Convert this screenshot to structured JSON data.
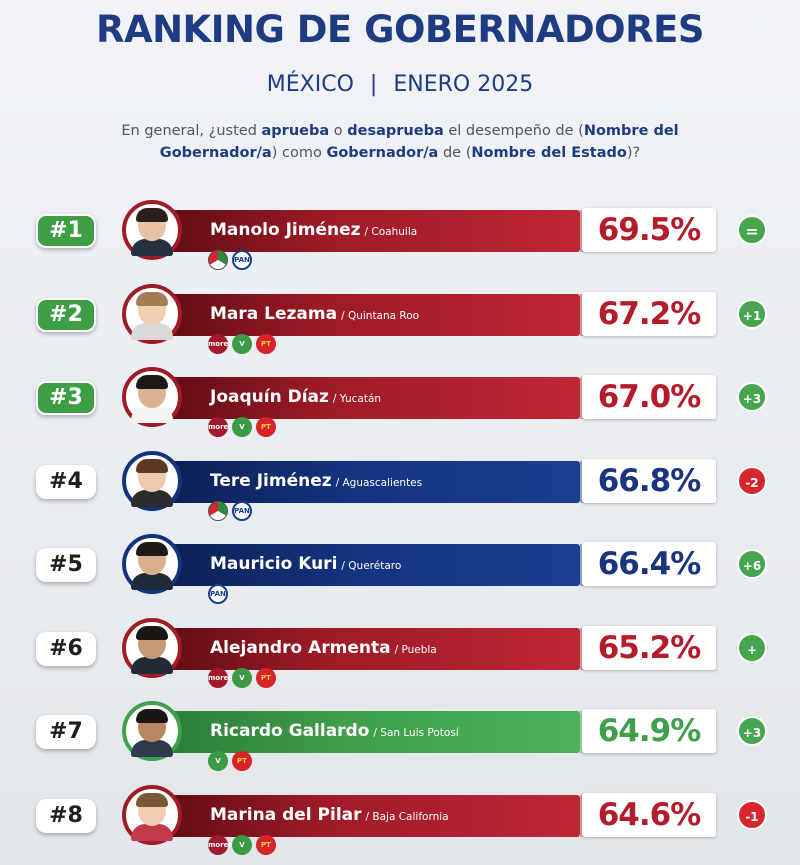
{
  "header": {
    "title": "RANKING DE GOBERNADORES",
    "country": "MÉXICO",
    "separator": "|",
    "date": "ENERO 2025",
    "question_parts": [
      "En general, ¿usted ",
      "aprueba",
      " o ",
      "desaprueba",
      " el desempeño de (",
      "Nombre del Gobernador/a",
      ") como ",
      "Gobernador/a",
      " de (",
      "Nombre del Estado",
      ")?"
    ]
  },
  "colors": {
    "morena_red": "#9e1b27",
    "pan_blue": "#14337f",
    "pvem_green": "#3f9f4b",
    "rank_top_green": "#3e9e46",
    "change_up": "#46a54f",
    "change_down": "#d8262f"
  },
  "rows": [
    {
      "rank": "#1",
      "name": "Manolo Jiménez",
      "state": "/ Coahuila",
      "pct": "69.5%",
      "value": 69.5,
      "change": "=",
      "trend": "eq",
      "color": "red",
      "top": true,
      "logos": [
        {
          "type": "pri",
          "label": ""
        },
        {
          "type": "pan",
          "label": "PAN"
        }
      ]
    },
    {
      "rank": "#2",
      "name": "Mara Lezama",
      "state": "/ Quintana Roo",
      "pct": "67.2%",
      "value": 67.2,
      "change": "+1",
      "trend": "up",
      "color": "red",
      "top": true,
      "logos": [
        {
          "type": "morena",
          "label": "morena"
        },
        {
          "type": "pvem",
          "label": "V"
        },
        {
          "type": "pt",
          "label": "PT"
        }
      ]
    },
    {
      "rank": "#3",
      "name": "Joaquín Díaz",
      "state": "/ Yucatán",
      "pct": "67.0%",
      "value": 67.0,
      "change": "+3",
      "trend": "up",
      "color": "red",
      "top": true,
      "logos": [
        {
          "type": "morena",
          "label": "morena"
        },
        {
          "type": "pvem",
          "label": "V"
        },
        {
          "type": "pt",
          "label": "PT"
        }
      ]
    },
    {
      "rank": "#4",
      "name": "Tere Jiménez",
      "state": "/ Aguascalientes",
      "pct": "66.8%",
      "value": 66.8,
      "change": "-2",
      "trend": "down",
      "color": "blue",
      "top": false,
      "logos": [
        {
          "type": "pri",
          "label": ""
        },
        {
          "type": "pan",
          "label": "PAN"
        }
      ]
    },
    {
      "rank": "#5",
      "name": "Mauricio Kuri",
      "state": "/ Querétaro",
      "pct": "66.4%",
      "value": 66.4,
      "change": "+6",
      "trend": "up",
      "color": "blue",
      "top": false,
      "logos": [
        {
          "type": "pan",
          "label": "PAN"
        }
      ]
    },
    {
      "rank": "#6",
      "name": "Alejandro Armenta",
      "state": "/ Puebla",
      "pct": "65.2%",
      "value": 65.2,
      "change": "+",
      "trend": "up",
      "color": "red",
      "top": false,
      "logos": [
        {
          "type": "morena",
          "label": "morena"
        },
        {
          "type": "pvem",
          "label": "V"
        },
        {
          "type": "pt",
          "label": "PT"
        }
      ]
    },
    {
      "rank": "#7",
      "name": "Ricardo Gallardo",
      "state": "/ San Luis Potosí",
      "pct": "64.9%",
      "value": 64.9,
      "change": "+3",
      "trend": "up",
      "color": "green",
      "top": false,
      "logos": [
        {
          "type": "pvem",
          "label": "V"
        },
        {
          "type": "pt",
          "label": "PT"
        }
      ]
    },
    {
      "rank": "#8",
      "name": "Marina del Pilar",
      "state": "/ Baja California",
      "pct": "64.6%",
      "value": 64.6,
      "change": "-1",
      "trend": "down",
      "color": "red",
      "top": false,
      "logos": [
        {
          "type": "morena",
          "label": "morena"
        },
        {
          "type": "pvem",
          "label": "V"
        },
        {
          "type": "pt",
          "label": "PT"
        }
      ]
    }
  ]
}
